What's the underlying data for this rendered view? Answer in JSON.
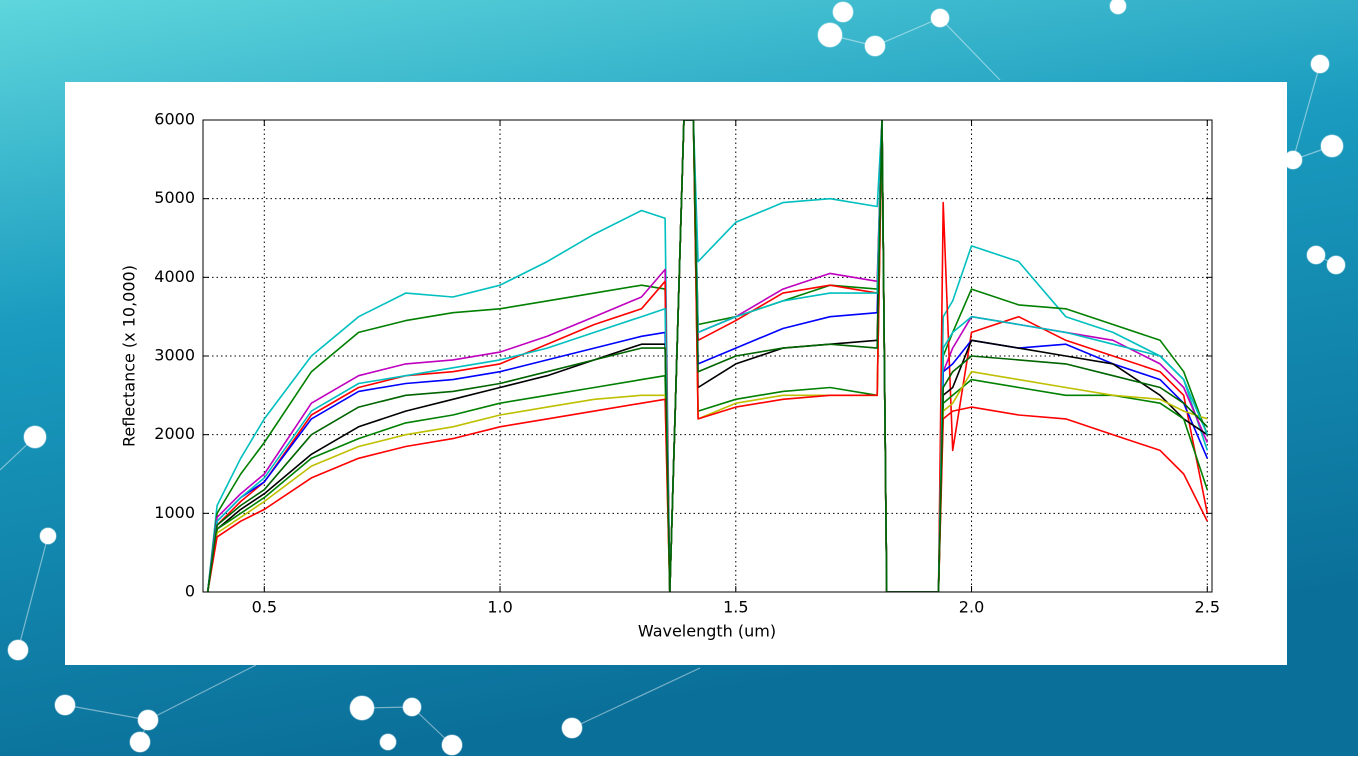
{
  "chart_data": {
    "type": "line",
    "xlabel": "Wavelength (um)",
    "ylabel": "Reflectance (x 10,000)",
    "x": [
      0.38,
      0.4,
      0.45,
      0.5,
      0.6,
      0.7,
      0.8,
      0.9,
      1.0,
      1.1,
      1.2,
      1.3,
      1.35,
      1.36,
      1.39,
      1.41,
      1.42,
      1.5,
      1.6,
      1.7,
      1.8,
      1.81,
      1.82,
      1.93,
      1.94,
      1.96,
      2.0,
      2.1,
      2.2,
      2.3,
      2.4,
      2.45,
      2.5
    ],
    "series": [
      {
        "color": "#00bfbf",
        "values": [
          0,
          1100,
          1700,
          2200,
          3000,
          3500,
          3800,
          3750,
          3900,
          4200,
          4550,
          4850,
          4750,
          0,
          6000,
          6000,
          4200,
          4700,
          4950,
          5000,
          4900,
          6000,
          0,
          0,
          3500,
          3700,
          4400,
          4200,
          3500,
          3300,
          3000,
          2700,
          1800
        ]
      },
      {
        "color": "#008000",
        "values": [
          0,
          1000,
          1500,
          1900,
          2800,
          3300,
          3450,
          3550,
          3600,
          3700,
          3800,
          3900,
          3850,
          0,
          6000,
          6000,
          3400,
          3500,
          3700,
          3900,
          3850,
          6000,
          0,
          0,
          3000,
          3300,
          3850,
          3650,
          3600,
          3400,
          3200,
          2800,
          2000
        ]
      },
      {
        "color": "#bf00bf",
        "values": [
          0,
          950,
          1250,
          1500,
          2400,
          2750,
          2900,
          2950,
          3050,
          3250,
          3500,
          3750,
          4100,
          0,
          6000,
          6000,
          3300,
          3500,
          3850,
          4050,
          3950,
          6000,
          0,
          0,
          2800,
          3100,
          3500,
          3400,
          3300,
          3200,
          2900,
          2600,
          1900
        ]
      },
      {
        "color": "#ff0000",
        "values": [
          0,
          850,
          1150,
          1400,
          2250,
          2600,
          2750,
          2800,
          2900,
          3150,
          3400,
          3600,
          3950,
          0,
          6000,
          6000,
          3200,
          3450,
          3800,
          3900,
          3800,
          6000,
          0,
          0,
          4950,
          1800,
          3300,
          3500,
          3200,
          3000,
          2800,
          2500,
          1000
        ]
      },
      {
        "color": "#0000ff",
        "values": [
          0,
          900,
          1200,
          1400,
          2200,
          2550,
          2650,
          2700,
          2800,
          2950,
          3100,
          3250,
          3300,
          0,
          6000,
          6000,
          2900,
          3100,
          3350,
          3500,
          3550,
          6000,
          0,
          0,
          2800,
          2900,
          3200,
          3100,
          3150,
          2900,
          2700,
          2400,
          1700
        ]
      },
      {
        "color": "#000000",
        "values": [
          0,
          800,
          1050,
          1250,
          1750,
          2100,
          2300,
          2450,
          2600,
          2750,
          2950,
          3150,
          3150,
          0,
          6000,
          6000,
          2600,
          2900,
          3100,
          3150,
          3200,
          6000,
          0,
          0,
          2500,
          2600,
          3200,
          3100,
          3000,
          2900,
          2500,
          2200,
          2000
        ]
      },
      {
        "color": "#008000",
        "values": [
          0,
          800,
          1000,
          1200,
          1700,
          1950,
          2150,
          2250,
          2400,
          2500,
          2600,
          2700,
          2750,
          0,
          6000,
          6000,
          2300,
          2450,
          2550,
          2600,
          2500,
          6000,
          0,
          0,
          2400,
          2500,
          2700,
          2600,
          2500,
          2500,
          2400,
          2200,
          1300
        ]
      },
      {
        "color": "#bfbf00",
        "values": [
          0,
          750,
          950,
          1150,
          1600,
          1850,
          2000,
          2100,
          2250,
          2350,
          2450,
          2500,
          2500,
          0,
          6000,
          6000,
          2200,
          2400,
          2500,
          2500,
          2500,
          6000,
          0,
          0,
          2300,
          2400,
          2800,
          2700,
          2600,
          2500,
          2450,
          2300,
          2200
        ]
      },
      {
        "color": "#ff0000",
        "values": [
          0,
          700,
          900,
          1050,
          1450,
          1700,
          1850,
          1950,
          2100,
          2200,
          2300,
          2400,
          2450,
          0,
          6000,
          6000,
          2200,
          2350,
          2450,
          2500,
          2500,
          6000,
          0,
          0,
          2200,
          2300,
          2350,
          2250,
          2200,
          2000,
          1800,
          1500,
          900
        ]
      },
      {
        "color": "#00bfbf",
        "values": [
          0,
          900,
          1200,
          1450,
          2300,
          2650,
          2750,
          2850,
          2950,
          3100,
          3300,
          3500,
          3600,
          0,
          6000,
          6000,
          3300,
          3500,
          3700,
          3800,
          3800,
          6000,
          0,
          0,
          3100,
          3300,
          3500,
          3400,
          3300,
          3150,
          3000,
          2700,
          2000
        ]
      },
      {
        "color": "#006400",
        "values": [
          0,
          850,
          1100,
          1300,
          2000,
          2350,
          2500,
          2550,
          2650,
          2800,
          2950,
          3100,
          3100,
          0,
          6000,
          6000,
          2800,
          3000,
          3100,
          3150,
          3100,
          6000,
          0,
          0,
          2600,
          2800,
          3000,
          2950,
          2900,
          2750,
          2600,
          2400,
          2100
        ]
      }
    ],
    "xlim": [
      0.37,
      2.51
    ],
    "ylim": [
      0,
      6000
    ],
    "xticks": [
      0.5,
      {
        "value": 1.0,
        "label": "1.0"
      },
      1.5,
      {
        "value": 2.0,
        "label": "2.0"
      },
      2.5
    ],
    "yticks": [
      0,
      1000,
      2000,
      3000,
      4000,
      5000,
      6000
    ],
    "grid": true
  }
}
